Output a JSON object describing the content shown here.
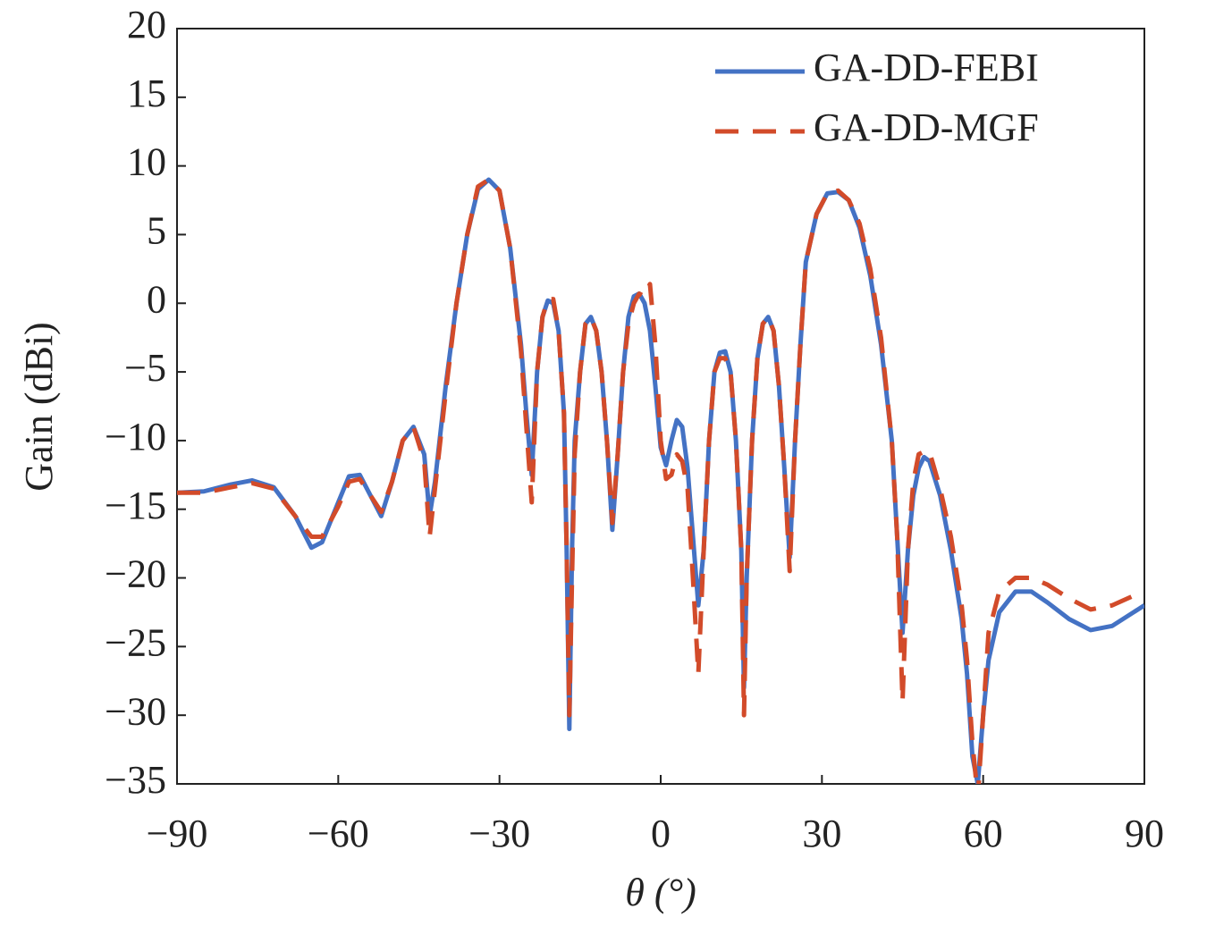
{
  "chart_data": {
    "type": "line",
    "xlabel": "θ (°)",
    "ylabel": "Gain (dBi)",
    "x": [
      -90,
      -85,
      -80,
      -76,
      -72,
      -68,
      -65,
      -63,
      -60,
      -58,
      -56,
      -54,
      -52,
      -50,
      -48,
      -46,
      -44,
      -43,
      -42,
      -40,
      -38,
      -36,
      -34,
      -32,
      -30,
      -28,
      -26,
      -25,
      -24,
      -23,
      -22,
      -21,
      -20,
      -19,
      -18,
      -17.5,
      -17,
      -16.5,
      -16,
      -15,
      -14,
      -13,
      -12,
      -11,
      -10,
      -9,
      -8,
      -7,
      -6,
      -5,
      -4,
      -3,
      -2,
      -1,
      0,
      1,
      2,
      3,
      4,
      5,
      6,
      7,
      8,
      9,
      10,
      11,
      12,
      13,
      14,
      15,
      15.5,
      16,
      17,
      18,
      19,
      20,
      21,
      22,
      23,
      24,
      25,
      26,
      27,
      29,
      31,
      33,
      35,
      37,
      39,
      41,
      43,
      44,
      45,
      46,
      47,
      48,
      49,
      50,
      52,
      54,
      56,
      57,
      58,
      59,
      60,
      61,
      63,
      66,
      69,
      72,
      76,
      80,
      84,
      88,
      90
    ],
    "series": [
      {
        "name": "GA-DD-FEBI",
        "color": "#4472c4",
        "dash": false,
        "values": [
          -13.8,
          -13.7,
          -13.2,
          -12.9,
          -13.4,
          -15.5,
          -17.8,
          -17.4,
          -14.5,
          -12.6,
          -12.5,
          -14,
          -15.5,
          -13,
          -10,
          -9,
          -11,
          -15.5,
          -13,
          -6,
          0,
          5,
          8.3,
          9,
          8.2,
          4,
          -3,
          -8,
          -12.5,
          -5,
          -1,
          0.2,
          0,
          -2,
          -8,
          -18,
          -31,
          -18,
          -10,
          -5,
          -1.5,
          -1,
          -2,
          -5,
          -10,
          -16.5,
          -11,
          -5,
          -1,
          0.5,
          0.7,
          0,
          -2,
          -6,
          -10.5,
          -11.8,
          -10,
          -8.5,
          -9,
          -12,
          -17,
          -22,
          -18,
          -10,
          -5,
          -3.6,
          -3.5,
          -5,
          -10,
          -18,
          -28,
          -20,
          -10,
          -4,
          -1.5,
          -1,
          -2,
          -6,
          -12,
          -18.5,
          -10,
          -3,
          3,
          6.5,
          8,
          8.1,
          7.5,
          5.5,
          2,
          -3,
          -10,
          -17,
          -24,
          -18,
          -14,
          -12,
          -11.2,
          -11.5,
          -14,
          -18,
          -23,
          -27,
          -33,
          -35,
          -30,
          -26,
          -22.5,
          -21,
          -21,
          -21.8,
          -23,
          -23.8,
          -23.5,
          -22.5,
          -22
        ]
      },
      {
        "name": "GA-DD-MGF",
        "color": "#d24b2a",
        "dash": true,
        "values": [
          -13.8,
          -13.8,
          -13.4,
          -13.1,
          -13.5,
          -15.5,
          -17,
          -17,
          -14.8,
          -13,
          -12.8,
          -14,
          -15.2,
          -13,
          -10,
          -9,
          -11.5,
          -17,
          -13.5,
          -6.5,
          0,
          5,
          8.5,
          9,
          8.2,
          4,
          -3.5,
          -9,
          -14.5,
          -5,
          -1,
          0.3,
          0.3,
          -2,
          -8,
          -18,
          -30,
          -20,
          -11,
          -5,
          -1.5,
          -1,
          -2,
          -5,
          -10,
          -16,
          -11,
          -5,
          -1.5,
          0,
          0.7,
          0.5,
          1.4,
          -3,
          -10,
          -12.8,
          -12.5,
          -11,
          -11.5,
          -13.5,
          -20,
          -27,
          -18,
          -10,
          -5,
          -4,
          -4,
          -5,
          -10,
          -18,
          -30,
          -20,
          -10,
          -4,
          -1.5,
          -1,
          -2,
          -6,
          -12,
          -19.5,
          -10,
          -3,
          3,
          6.5,
          8,
          8.2,
          7.5,
          5.8,
          2.5,
          -2.5,
          -10,
          -17,
          -29,
          -18,
          -13,
          -11,
          -10.8,
          -10.8,
          -13.5,
          -17,
          -22,
          -26,
          -32,
          -36,
          -30,
          -24,
          -21,
          -20,
          -20,
          -20.5,
          -21.5,
          -22.3,
          -22,
          -21.3,
          -21
        ]
      }
    ],
    "xlim": [
      -90,
      90
    ],
    "xticks": [
      {
        "value": -90,
        "label": "−90"
      },
      {
        "value": -60,
        "label": "−60"
      },
      {
        "value": -30,
        "label": "−30"
      },
      0,
      30,
      60,
      90
    ],
    "ylim": [
      -35,
      20
    ],
    "yticks": [
      {
        "value": -35,
        "label": "−35"
      },
      {
        "value": -30,
        "label": "−30"
      },
      {
        "value": -25,
        "label": "−25"
      },
      {
        "value": -20,
        "label": "−20"
      },
      {
        "value": -15,
        "label": "−15"
      },
      {
        "value": -10,
        "label": "−10"
      },
      {
        "value": -5,
        "label": "−5"
      },
      0,
      5,
      10,
      15,
      20
    ],
    "legend": "upper right",
    "grid": false
  }
}
